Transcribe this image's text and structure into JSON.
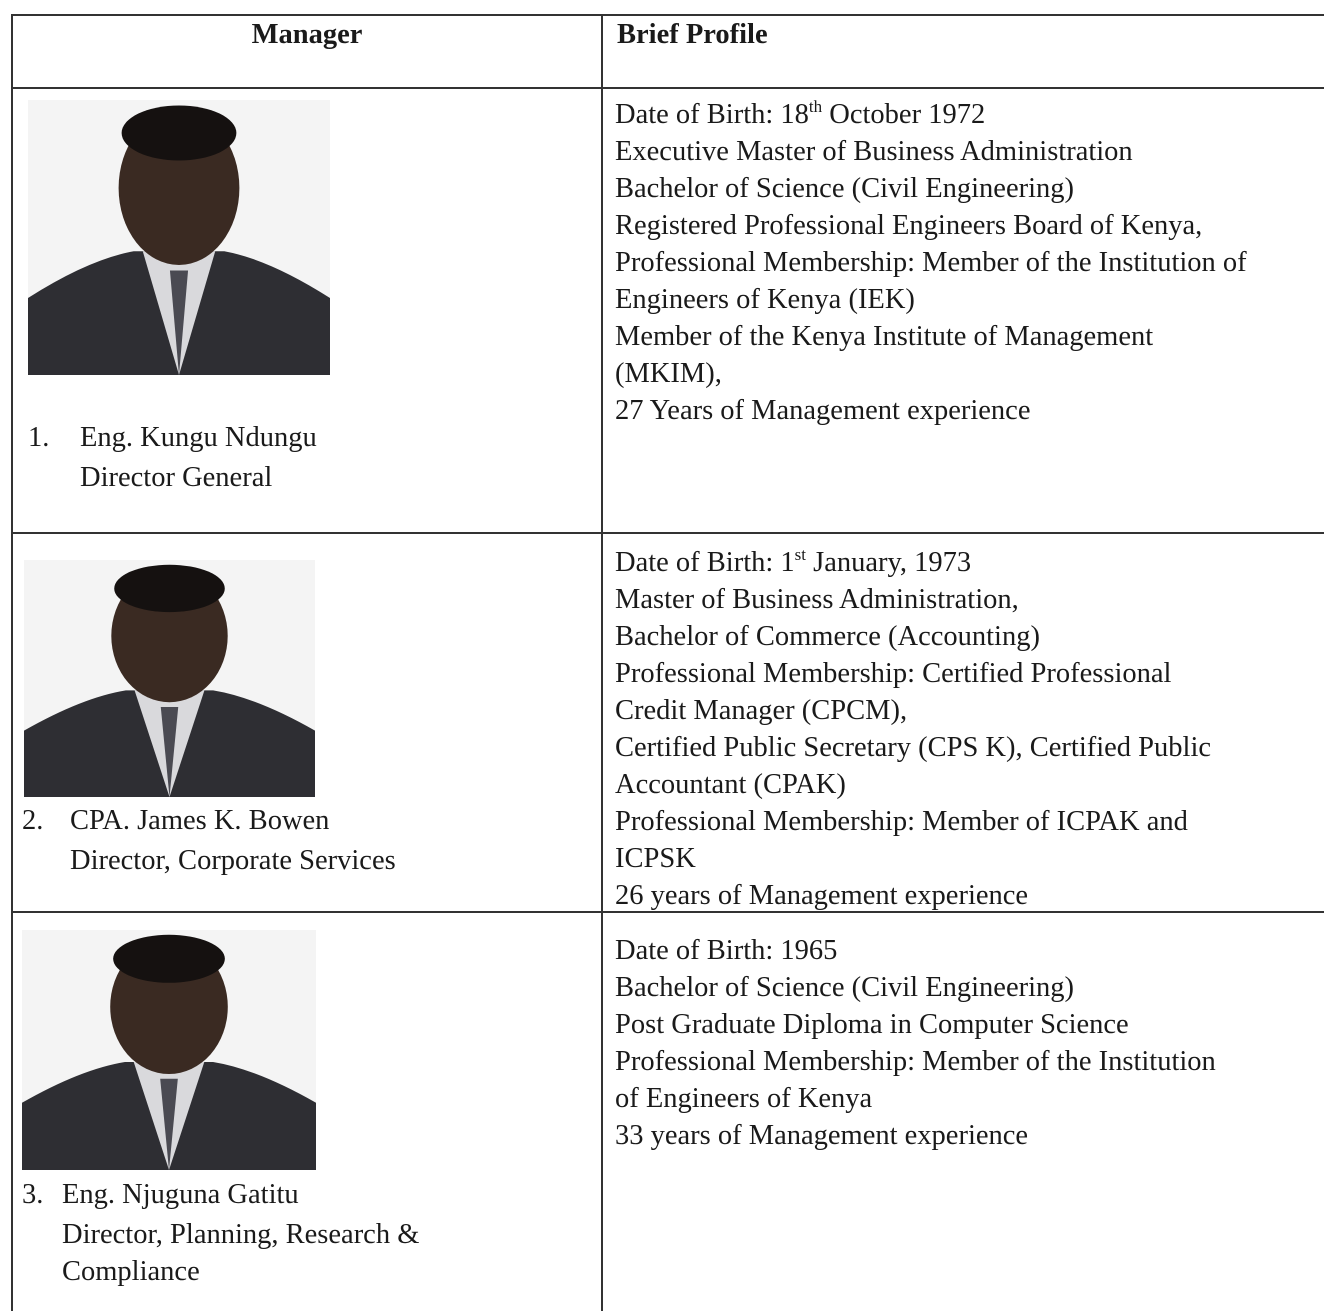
{
  "table": {
    "header": [
      "Manager",
      "Brief Profile"
    ],
    "rows": [
      {
        "number": "1.",
        "name": "Eng. Kungu Ndungu",
        "title": [
          "Director General"
        ],
        "dob": {
          "text": "Date of Birth: 18",
          "sup": "th",
          "rest": "October 1972"
        },
        "profile": [
          "Executive Master of Business Administration",
          "Bachelor of Science (Civil Engineering)",
          "Registered Professional Engineers Board of Kenya,",
          "Professional Membership: Member of the Institution of",
          "Engineers of Kenya (IEK)",
          "Member of the Kenya Institute of Management",
          "(MKIM),",
          "27 Years of Management experience"
        ]
      },
      {
        "number": "2.",
        "name": "CPA.  James K. Bowen",
        "title": [
          "Director, Corporate Services"
        ],
        "dob": {
          "text": "Date of Birth: 1",
          "sup": "st",
          "rest": "January, 1973"
        },
        "profile": [
          "Master of Business Administration,",
          "Bachelor of Commerce (Accounting)",
          "Professional Membership: Certified Professional",
          "Credit Manager (CPCM),",
          "Certified Public Secretary (CPS K), Certified Public",
          "Accountant (CPAK)",
          "Professional Membership: Member of ICPAK and",
          "ICPSK",
          "26 years of Management experience"
        ]
      },
      {
        "number": "3.",
        "name": "Eng. Njuguna Gatitu",
        "title": [
          "Director, Planning, Research &",
          "Compliance"
        ],
        "dob": {
          "text": "Date of Birth: 1965"
        },
        "profile": [
          "Bachelor of Science (Civil Engineering)",
          "Post Graduate Diploma in Computer Science",
          "Professional Membership: Member of the Institution",
          "of Engineers of Kenya",
          "33 years of Management experience"
        ]
      }
    ]
  }
}
